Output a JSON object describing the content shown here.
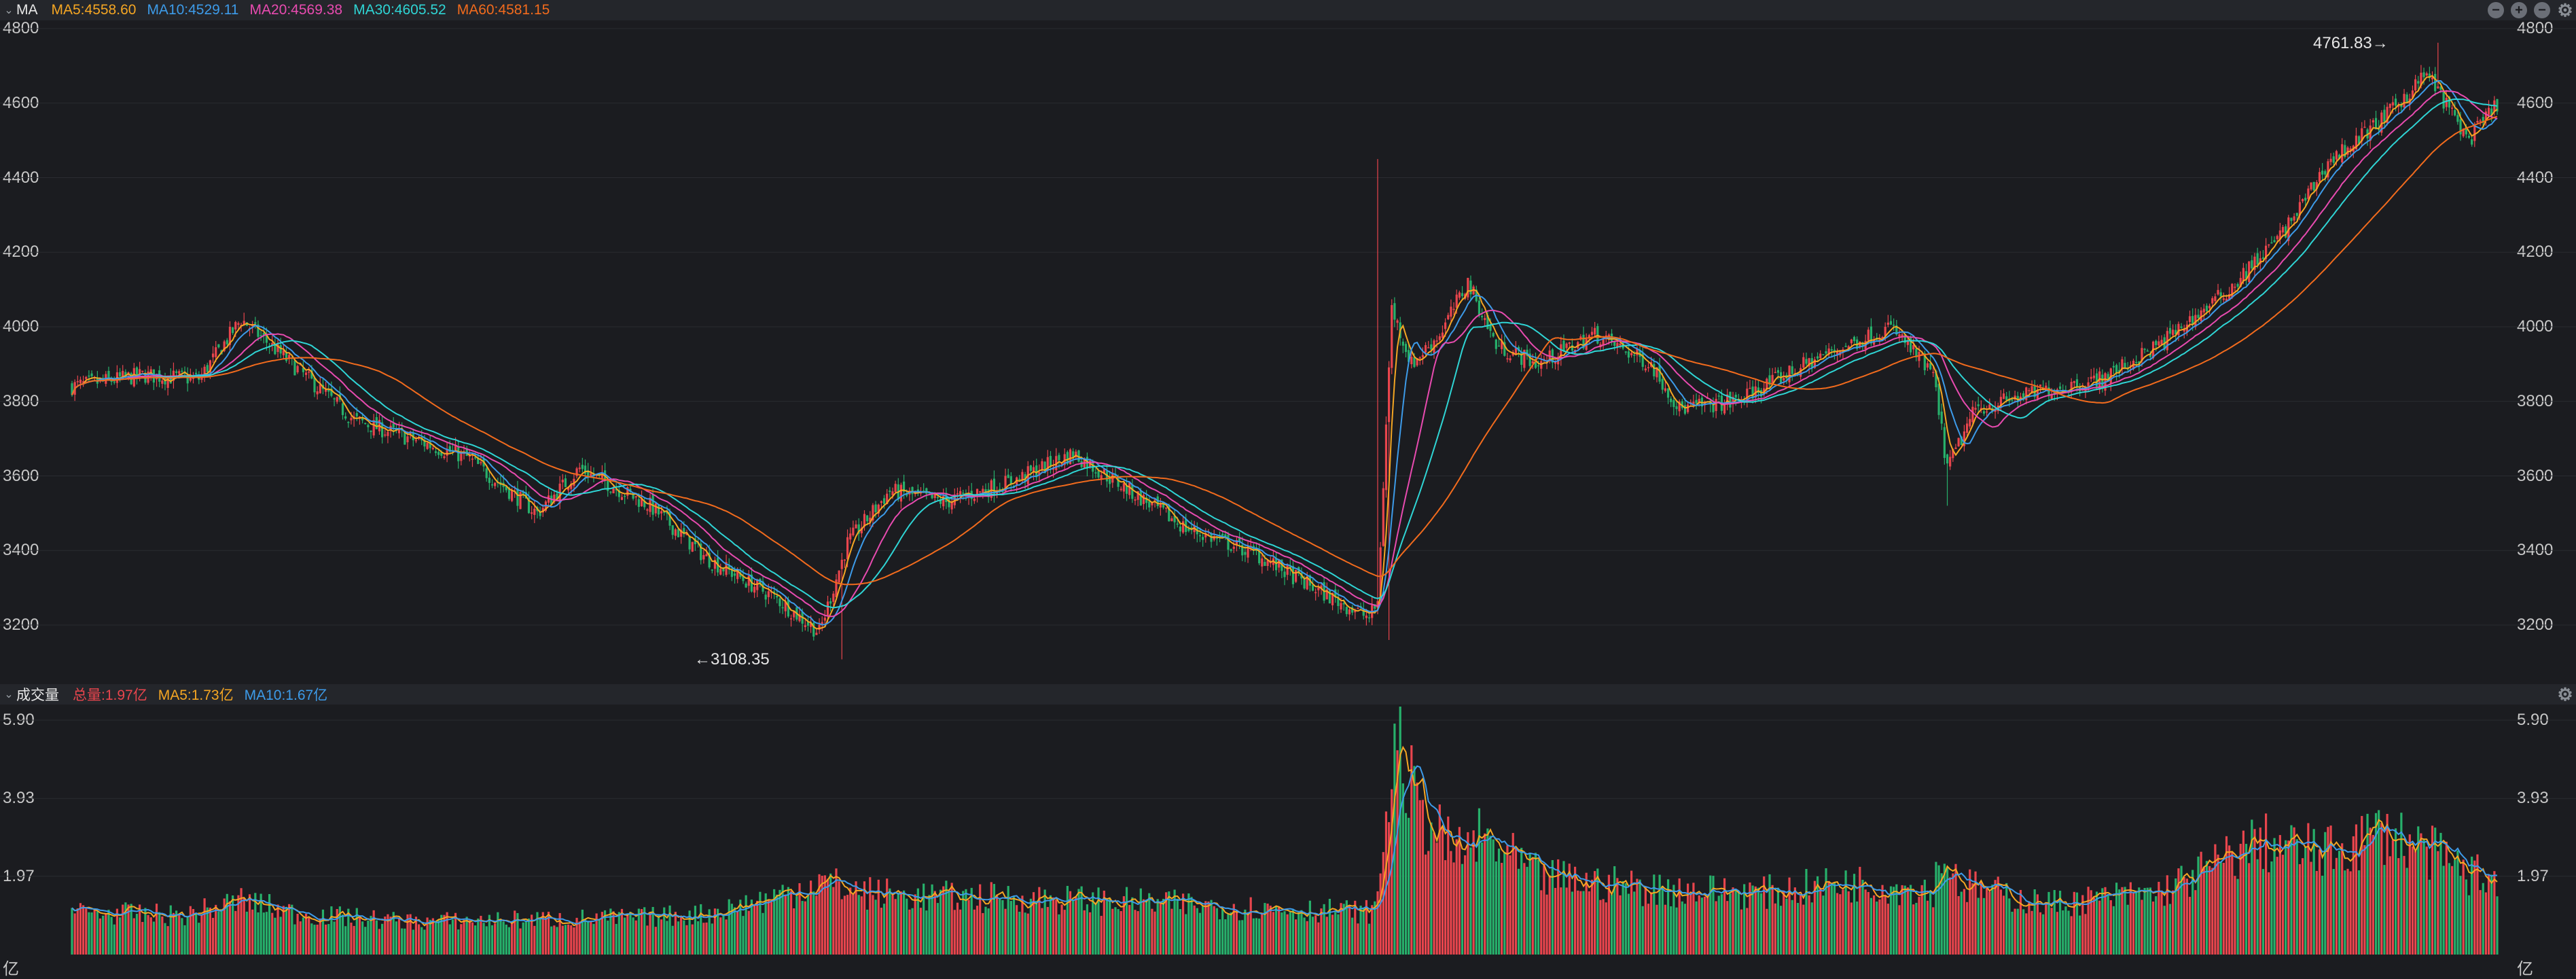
{
  "price_panel": {
    "title": "MA",
    "legend": [
      {
        "label": "MA5:4558.60",
        "color": "#f5a623"
      },
      {
        "label": "MA10:4529.11",
        "color": "#3d9be9"
      },
      {
        "label": "MA20:4569.38",
        "color": "#e84bb0"
      },
      {
        "label": "MA30:4605.52",
        "color": "#2fd5d5"
      },
      {
        "label": "MA60:4581.15",
        "color": "#f26b1d"
      }
    ],
    "y_ticks": [
      "4800",
      "4600",
      "4400",
      "4200",
      "4000",
      "3800",
      "3600",
      "3400",
      "3200"
    ],
    "annotations": {
      "high": "4761.83→",
      "low": "←3108.35"
    }
  },
  "volume_panel": {
    "title": "成交量",
    "legend": [
      {
        "label": "总量:1.97亿",
        "color": "#e8454d"
      },
      {
        "label": "MA5:1.73亿",
        "color": "#f5a623"
      },
      {
        "label": "MA10:1.67亿",
        "color": "#3d9be9"
      }
    ],
    "y_ticks": [
      "5.90",
      "3.93",
      "1.97"
    ],
    "unit": "亿"
  },
  "colors": {
    "up": "#e8454d",
    "down": "#27b06b",
    "background": "#1b1c20",
    "grid": "#2a2c31"
  },
  "icons": [
    "minimize-icon",
    "add-icon",
    "remove-icon",
    "settings-icon"
  ],
  "chart_data": [
    {
      "type": "candlestick",
      "title": "MA",
      "ylim": [
        3108,
        4800
      ],
      "y_ticks": [
        3200,
        3400,
        3600,
        3800,
        4000,
        4200,
        4400,
        4600,
        4800
      ],
      "close_path": [
        [
          0,
          3840
        ],
        [
          25,
          3870
        ],
        [
          45,
          3860
        ],
        [
          60,
          4020
        ],
        [
          75,
          3920
        ],
        [
          100,
          3750
        ],
        [
          140,
          3650
        ],
        [
          165,
          3500
        ],
        [
          180,
          3620
        ],
        [
          205,
          3520
        ],
        [
          225,
          3380
        ],
        [
          250,
          3270
        ],
        [
          265,
          3180
        ],
        [
          275,
          3420
        ],
        [
          290,
          3560
        ],
        [
          310,
          3530
        ],
        [
          335,
          3590
        ],
        [
          355,
          3660
        ],
        [
          375,
          3560
        ],
        [
          395,
          3460
        ],
        [
          420,
          3390
        ],
        [
          440,
          3300
        ],
        [
          460,
          3220
        ],
        [
          463,
          3260
        ],
        [
          468,
          4050
        ],
        [
          475,
          3900
        ],
        [
          485,
          3980
        ],
        [
          495,
          4120
        ],
        [
          505,
          3950
        ],
        [
          520,
          3900
        ],
        [
          540,
          3980
        ],
        [
          560,
          3900
        ],
        [
          570,
          3780
        ],
        [
          590,
          3800
        ],
        [
          620,
          3920
        ],
        [
          645,
          4000
        ],
        [
          660,
          3870
        ],
        [
          665,
          3620
        ],
        [
          675,
          3780
        ],
        [
          700,
          3830
        ],
        [
          720,
          3860
        ],
        [
          740,
          3950
        ],
        [
          765,
          4100
        ],
        [
          785,
          4260
        ],
        [
          800,
          4440
        ],
        [
          820,
          4560
        ],
        [
          835,
          4680
        ],
        [
          845,
          4560
        ],
        [
          850,
          4500
        ],
        [
          860,
          4600
        ]
      ],
      "annotations": [
        {
          "label": "4761.83",
          "value": 4761.83
        },
        {
          "label": "3108.35",
          "value": 3108.35
        }
      ],
      "series": [
        {
          "name": "MA5",
          "value": 4558.6,
          "color": "#f5a623"
        },
        {
          "name": "MA10",
          "value": 4529.11,
          "color": "#3d9be9"
        },
        {
          "name": "MA20",
          "value": 4569.38,
          "color": "#e84bb0"
        },
        {
          "name": "MA30",
          "value": 4605.52,
          "color": "#2fd5d5"
        },
        {
          "name": "MA60",
          "value": 4581.15,
          "color": "#f26b1d"
        }
      ]
    },
    {
      "type": "bar",
      "title": "成交量",
      "unit": "亿",
      "ylim": [
        0,
        5.9
      ],
      "y_ticks": [
        1.97,
        3.93,
        5.9
      ],
      "volume_path": [
        [
          0,
          1.1
        ],
        [
          40,
          1.0
        ],
        [
          60,
          1.4
        ],
        [
          80,
          1.05
        ],
        [
          120,
          0.85
        ],
        [
          160,
          0.9
        ],
        [
          200,
          0.95
        ],
        [
          225,
          1.05
        ],
        [
          250,
          1.5
        ],
        [
          265,
          1.9
        ],
        [
          280,
          1.6
        ],
        [
          300,
          1.5
        ],
        [
          340,
          1.45
        ],
        [
          380,
          1.35
        ],
        [
          420,
          1.2
        ],
        [
          462,
          1.1
        ],
        [
          466,
          3.5
        ],
        [
          470,
          5.8
        ],
        [
          476,
          3.9
        ],
        [
          490,
          2.6
        ],
        [
          500,
          3.0
        ],
        [
          520,
          2.0
        ],
        [
          560,
          1.7
        ],
        [
          600,
          1.6
        ],
        [
          630,
          1.85
        ],
        [
          660,
          1.7
        ],
        [
          663,
          2.6
        ],
        [
          670,
          1.8
        ],
        [
          700,
          1.3
        ],
        [
          740,
          1.6
        ],
        [
          760,
          2.3
        ],
        [
          775,
          2.9
        ],
        [
          800,
          2.6
        ],
        [
          820,
          3.2
        ],
        [
          840,
          2.5
        ],
        [
          850,
          2.1
        ],
        [
          860,
          1.97
        ]
      ],
      "series": [
        {
          "name": "总量",
          "value": 1.97,
          "color": "#e8454d"
        },
        {
          "name": "MA5",
          "value": 1.73,
          "color": "#f5a623"
        },
        {
          "name": "MA10",
          "value": 1.67,
          "color": "#3d9be9"
        }
      ]
    }
  ]
}
